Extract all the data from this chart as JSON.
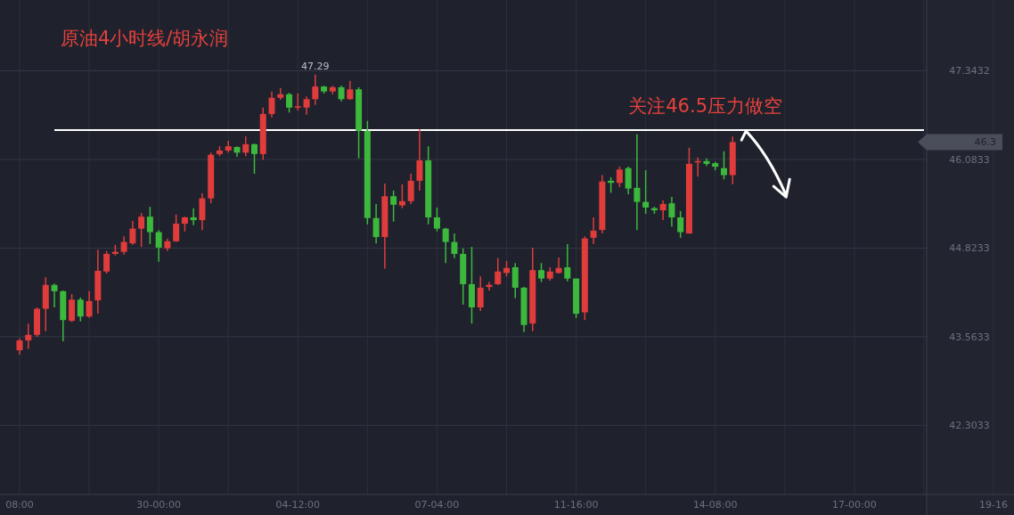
{
  "chart_data": {
    "type": "candlestick",
    "title": "原油4小时线/胡永润",
    "categories": [
      "08:00",
      null,
      null,
      null,
      null,
      null,
      null,
      null,
      null,
      null,
      null,
      null,
      null,
      null,
      null,
      null,
      "30-00:00",
      null,
      null,
      null,
      null,
      null,
      null,
      null,
      null,
      null,
      null,
      null,
      null,
      null,
      null,
      null,
      "04-12:00",
      null,
      null,
      null,
      null,
      null,
      null,
      null,
      null,
      null,
      null,
      null,
      null,
      null,
      null,
      null,
      "07-04:00",
      null,
      null,
      null,
      null,
      null,
      null,
      null,
      null,
      null,
      null,
      null,
      null,
      null,
      null,
      null,
      "11-16:00",
      null,
      null,
      null,
      null,
      null,
      null,
      null,
      null,
      null,
      null,
      null,
      null,
      null,
      null,
      null,
      "14-08:00",
      null,
      null,
      null,
      null,
      null,
      null,
      null,
      null,
      null,
      null,
      null,
      null,
      null,
      null,
      null,
      "17-00:00",
      null,
      null,
      null,
      null,
      null,
      null,
      null,
      null,
      null,
      null,
      null,
      null,
      null,
      null,
      null,
      "19-16"
    ],
    "ohlc": [
      [
        43.37,
        43.54,
        43.31,
        43.51
      ],
      [
        43.51,
        43.75,
        43.39,
        43.59
      ],
      [
        43.59,
        43.98,
        43.56,
        43.96
      ],
      [
        43.96,
        44.41,
        43.64,
        44.3
      ],
      [
        44.3,
        44.32,
        43.98,
        44.21
      ],
      [
        44.21,
        44.22,
        43.5,
        43.8
      ],
      [
        43.79,
        44.17,
        43.77,
        44.09
      ],
      [
        44.09,
        44.12,
        43.78,
        43.85
      ],
      [
        43.85,
        44.21,
        43.83,
        44.07
      ],
      [
        44.08,
        44.8,
        43.89,
        44.5
      ],
      [
        44.49,
        44.78,
        44.46,
        44.74
      ],
      [
        44.74,
        44.87,
        44.72,
        44.77
      ],
      [
        44.77,
        44.99,
        44.73,
        44.91
      ],
      [
        44.89,
        45.21,
        44.87,
        45.1
      ],
      [
        45.1,
        45.32,
        44.84,
        45.27
      ],
      [
        45.27,
        45.41,
        44.88,
        45.05
      ],
      [
        45.05,
        45.08,
        44.63,
        44.83
      ],
      [
        44.82,
        44.96,
        44.78,
        44.92
      ],
      [
        44.92,
        45.3,
        44.91,
        45.17
      ],
      [
        45.17,
        45.27,
        45.06,
        45.26
      ],
      [
        45.26,
        45.39,
        45.15,
        45.22
      ],
      [
        45.22,
        45.6,
        45.08,
        45.53
      ],
      [
        45.53,
        46.18,
        45.46,
        46.15
      ],
      [
        46.16,
        46.27,
        46.13,
        46.21
      ],
      [
        46.21,
        46.35,
        46.18,
        46.27
      ],
      [
        46.26,
        46.27,
        46.12,
        46.18
      ],
      [
        46.18,
        46.41,
        46.13,
        46.3
      ],
      [
        46.3,
        46.31,
        45.88,
        46.16
      ],
      [
        46.16,
        46.82,
        46.08,
        46.73
      ],
      [
        46.73,
        47.05,
        46.68,
        46.96
      ],
      [
        46.96,
        47.1,
        46.93,
        47.01
      ],
      [
        47.01,
        47.03,
        46.75,
        46.82
      ],
      [
        46.82,
        47.02,
        46.78,
        46.84
      ],
      [
        46.82,
        46.98,
        46.72,
        46.94
      ],
      [
        46.94,
        47.29,
        46.86,
        47.12
      ],
      [
        47.12,
        47.13,
        47.02,
        47.05
      ],
      [
        47.05,
        47.13,
        47.01,
        47.11
      ],
      [
        47.11,
        47.13,
        46.91,
        46.94
      ],
      [
        46.94,
        47.2,
        46.93,
        47.08
      ],
      [
        47.08,
        47.11,
        46.1,
        46.49
      ],
      [
        46.49,
        46.63,
        45.16,
        45.25
      ],
      [
        45.25,
        45.45,
        44.89,
        44.98
      ],
      [
        44.98,
        45.74,
        44.53,
        45.56
      ],
      [
        45.56,
        45.64,
        45.2,
        45.44
      ],
      [
        45.43,
        45.73,
        45.39,
        45.49
      ],
      [
        45.49,
        45.88,
        45.45,
        45.78
      ],
      [
        45.78,
        46.51,
        45.64,
        46.07
      ],
      [
        46.07,
        46.27,
        45.16,
        45.26
      ],
      [
        45.26,
        45.4,
        45.06,
        45.1
      ],
      [
        45.1,
        45.11,
        44.61,
        44.91
      ],
      [
        44.91,
        45.03,
        44.68,
        44.74
      ],
      [
        44.74,
        44.82,
        44.02,
        44.31
      ],
      [
        44.31,
        44.84,
        43.75,
        43.98
      ],
      [
        43.98,
        44.42,
        43.93,
        44.26
      ],
      [
        44.27,
        44.34,
        44.22,
        44.3
      ],
      [
        44.31,
        44.68,
        44.3,
        44.49
      ],
      [
        44.47,
        44.64,
        44.42,
        44.54
      ],
      [
        44.55,
        44.61,
        44.11,
        44.26
      ],
      [
        44.26,
        44.27,
        43.63,
        43.73
      ],
      [
        43.75,
        44.83,
        43.64,
        44.51
      ],
      [
        44.51,
        44.61,
        44.34,
        44.39
      ],
      [
        44.39,
        44.55,
        44.36,
        44.49
      ],
      [
        44.47,
        44.69,
        44.46,
        44.54
      ],
      [
        44.55,
        44.88,
        44.35,
        44.39
      ],
      [
        44.39,
        44.39,
        43.83,
        43.89
      ],
      [
        43.91,
        44.99,
        43.8,
        44.96
      ],
      [
        44.97,
        45.26,
        44.88,
        45.07
      ],
      [
        45.08,
        45.86,
        45.03,
        45.77
      ],
      [
        45.78,
        45.83,
        45.61,
        45.75
      ],
      [
        45.75,
        45.98,
        45.69,
        45.94
      ],
      [
        45.96,
        45.98,
        45.59,
        45.67
      ],
      [
        45.68,
        46.44,
        45.08,
        45.48
      ],
      [
        45.48,
        45.93,
        45.31,
        45.4
      ],
      [
        45.39,
        45.41,
        45.31,
        45.36
      ],
      [
        45.36,
        45.5,
        45.22,
        45.45
      ],
      [
        45.46,
        45.55,
        45.13,
        45.26
      ],
      [
        45.26,
        45.35,
        44.97,
        45.05
      ],
      [
        45.03,
        46.25,
        45.03,
        46.02
      ],
      [
        46.05,
        46.11,
        45.84,
        46.06
      ],
      [
        46.06,
        46.1,
        45.99,
        46.02
      ],
      [
        46.03,
        46.05,
        45.93,
        45.98
      ],
      [
        45.96,
        46.2,
        45.8,
        45.86
      ],
      [
        45.86,
        46.41,
        45.73,
        46.33
      ],
      null,
      null,
      null,
      null,
      null,
      null,
      null,
      null,
      null,
      null,
      null,
      null,
      null,
      null,
      null,
      null,
      null,
      null,
      null,
      null,
      null,
      null,
      null,
      null,
      null,
      null,
      null,
      null,
      null,
      null
    ],
    "colors": [
      "#e03c3c",
      "#e03c3c",
      "#e03c3c",
      "#e03c3c",
      "#3cb93c",
      "#3cb93c",
      "#e03c3c",
      "#3cb93c",
      "#e03c3c",
      "#e03c3c",
      "#e03c3c",
      "#e03c3c",
      "#e03c3c",
      "#e03c3c",
      "#e03c3c",
      "#3cb93c",
      "#3cb93c",
      "#e03c3c",
      "#e03c3c",
      "#e03c3c",
      "#3cb93c",
      "#e03c3c",
      "#e03c3c",
      "#e03c3c",
      "#e03c3c",
      "#3cb93c",
      "#e03c3c",
      "#3cb93c",
      "#e03c3c",
      "#e03c3c",
      "#e03c3c",
      "#3cb93c",
      "#e03c3c",
      "#e03c3c",
      "#e03c3c",
      "#3cb93c",
      "#e03c3c",
      "#3cb93c",
      "#e03c3c",
      "#3cb93c",
      "#3cb93c",
      "#3cb93c",
      "#e03c3c",
      "#3cb93c",
      "#e03c3c",
      "#e03c3c",
      "#e03c3c",
      "#3cb93c",
      "#3cb93c",
      "#3cb93c",
      "#3cb93c",
      "#3cb93c",
      "#3cb93c",
      "#e03c3c",
      "#e03c3c",
      "#e03c3c",
      "#e03c3c",
      "#3cb93c",
      "#3cb93c",
      "#e03c3c",
      "#3cb93c",
      "#e03c3c",
      "#e03c3c",
      "#3cb93c",
      "#3cb93c",
      "#e03c3c",
      "#e03c3c",
      "#e03c3c",
      "#3cb93c",
      "#e03c3c",
      "#3cb93c",
      "#3cb93c",
      "#3cb93c",
      "#3cb93c",
      "#e03c3c",
      "#3cb93c",
      "#3cb93c",
      "#e03c3c",
      "#e03c3c",
      "#3cb93c",
      "#3cb93c",
      "#3cb93c",
      "#e03c3c",
      null,
      null,
      null,
      null,
      null,
      null,
      null,
      null,
      null,
      null,
      null,
      null,
      null,
      null,
      null,
      null,
      null,
      null,
      null,
      null,
      null,
      null,
      null,
      null,
      null,
      null,
      null,
      null,
      null,
      null
    ],
    "ylim": [
      41.32,
      48.35
    ],
    "yticks": [
      42.3033,
      43.5633,
      44.8233,
      46.0833,
      47.3432
    ],
    "grid": true,
    "ref_lines": [
      {
        "axis": "y",
        "value": 46.5,
        "label": "关注46.5压力做空",
        "color": "#ffffff"
      }
    ],
    "annotations": [
      {
        "text": "47.29",
        "y": 47.29
      },
      "46.3"
    ]
  }
}
